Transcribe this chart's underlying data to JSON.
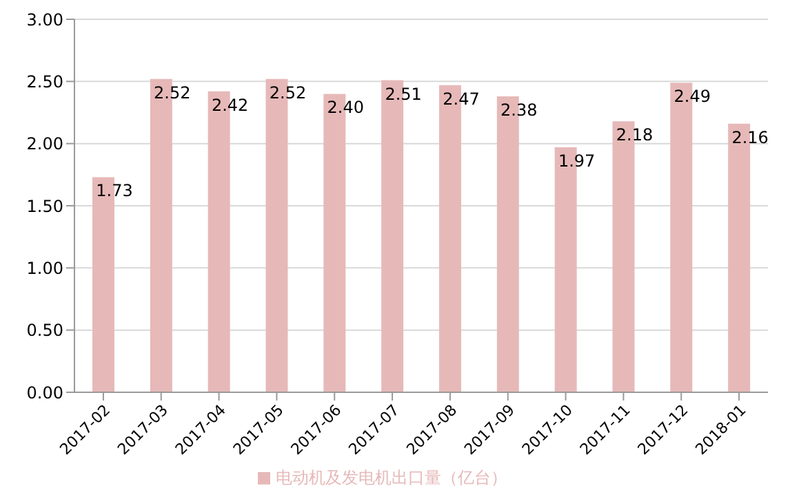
{
  "chart_data": {
    "type": "bar",
    "categories": [
      "2017-02",
      "2017-03",
      "2017-04",
      "2017-05",
      "2017-06",
      "2017-07",
      "2017-08",
      "2017-09",
      "2017-10",
      "2017-11",
      "2017-12",
      "2018-01"
    ],
    "series": [
      {
        "name": "电动机及发电机出口量（亿台）",
        "color": "#e6b9b8",
        "values": [
          1.73,
          2.52,
          2.42,
          2.52,
          2.4,
          2.51,
          2.47,
          2.38,
          1.97,
          2.18,
          2.49,
          2.16
        ],
        "value_labels": [
          "1.73",
          "2.52",
          "2.42",
          "2.52",
          "2.40",
          "2.51",
          "2.47",
          "2.38",
          "1.97",
          "2.18",
          "2.49",
          "2.16"
        ]
      }
    ],
    "ylim": [
      0,
      3
    ],
    "yticks": [
      {
        "value": 0,
        "label": "0.00"
      },
      {
        "value": 0.5,
        "label": "0.50"
      },
      {
        "value": 1,
        "label": "1.00"
      },
      {
        "value": 1.5,
        "label": "1.50"
      },
      {
        "value": 2,
        "label": "2.00"
      },
      {
        "value": 2.5,
        "label": "2.50"
      },
      {
        "value": 3,
        "label": "3.00"
      }
    ],
    "grid": "y",
    "legend": "bottom"
  }
}
